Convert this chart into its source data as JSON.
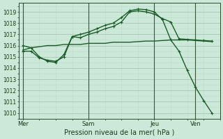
{
  "bg_color": "#cce8d8",
  "grid_major_color": "#aaccb8",
  "grid_minor_color": "#bbddc8",
  "line_color": "#1a5c28",
  "xlabel": "Pression niveau de la mer( hPa )",
  "yticks": [
    1010,
    1011,
    1012,
    1013,
    1014,
    1015,
    1016,
    1017,
    1018,
    1019
  ],
  "ylim": [
    1009.5,
    1019.8
  ],
  "xtick_labels": [
    "Mer",
    "Sam",
    "Jeu",
    "Ven"
  ],
  "xtick_positions": [
    0,
    8,
    16,
    21
  ],
  "xlim": [
    -0.5,
    24
  ],
  "vlines": [
    0,
    8,
    16,
    21
  ],
  "series1_x": [
    0,
    1,
    2,
    3,
    4,
    5,
    6,
    7,
    8,
    9,
    10,
    11,
    12,
    13,
    14,
    15,
    16,
    17,
    18,
    19,
    20,
    21,
    22,
    23
  ],
  "series1_y": [
    1015.6,
    1015.8,
    1015.9,
    1016.0,
    1016.0,
    1016.1,
    1016.1,
    1016.1,
    1016.2,
    1016.2,
    1016.2,
    1016.3,
    1016.3,
    1016.3,
    1016.35,
    1016.4,
    1016.4,
    1016.45,
    1016.5,
    1016.5,
    1016.5,
    1016.45,
    1016.4,
    1016.35
  ],
  "series2_x": [
    0,
    1,
    2,
    3,
    4,
    5,
    6,
    7,
    8,
    9,
    10,
    11,
    12,
    13,
    14,
    15,
    16,
    17,
    18,
    19,
    20,
    21,
    22,
    23
  ],
  "series2_y": [
    1016.0,
    1015.8,
    1015.0,
    1014.6,
    1014.5,
    1015.2,
    1016.8,
    1016.7,
    1017.0,
    1017.2,
    1017.5,
    1017.7,
    1018.1,
    1019.0,
    1019.1,
    1019.0,
    1018.8,
    1018.4,
    1018.1,
    1016.6,
    1016.55,
    1016.5,
    1016.45,
    1016.4
  ],
  "series3_x": [
    0,
    1,
    2,
    3,
    4,
    5,
    6,
    7,
    8,
    9,
    10,
    11,
    12,
    13,
    14,
    15,
    16,
    17,
    18,
    19,
    20,
    21,
    22,
    23
  ],
  "series3_y": [
    1015.5,
    1015.5,
    1014.9,
    1014.7,
    1014.6,
    1015.0,
    1016.8,
    1017.0,
    1017.2,
    1017.5,
    1017.8,
    1018.0,
    1018.5,
    1019.1,
    1019.25,
    1019.2,
    1019.0,
    1018.3,
    1016.5,
    1015.5,
    1013.8,
    1012.3,
    1011.1,
    1010.0
  ]
}
